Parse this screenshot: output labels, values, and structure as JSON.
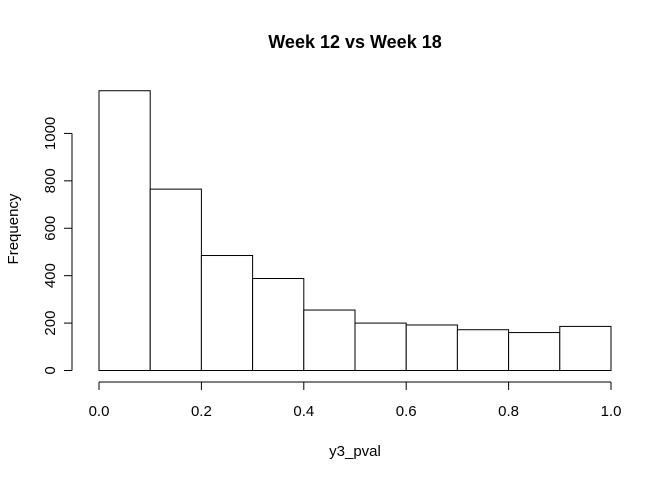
{
  "chart_data": {
    "type": "bar",
    "title": "Week 12 vs Week 18",
    "xlabel": "y3_pval",
    "ylabel": "Frequency",
    "bins": [
      {
        "x_start": 0.0,
        "x_end": 0.1,
        "value": 1180
      },
      {
        "x_start": 0.1,
        "x_end": 0.2,
        "value": 765
      },
      {
        "x_start": 0.2,
        "x_end": 0.3,
        "value": 485
      },
      {
        "x_start": 0.3,
        "x_end": 0.4,
        "value": 388
      },
      {
        "x_start": 0.4,
        "x_end": 0.5,
        "value": 255
      },
      {
        "x_start": 0.5,
        "x_end": 0.6,
        "value": 200
      },
      {
        "x_start": 0.6,
        "x_end": 0.7,
        "value": 192
      },
      {
        "x_start": 0.7,
        "x_end": 0.8,
        "value": 172
      },
      {
        "x_start": 0.8,
        "x_end": 0.9,
        "value": 160
      },
      {
        "x_start": 0.9,
        "x_end": 1.0,
        "value": 186
      }
    ],
    "xlim": [
      0.0,
      1.0
    ],
    "ylim": [
      0,
      1200
    ],
    "x_ticks": [
      0.0,
      0.2,
      0.4,
      0.6,
      0.8,
      1.0
    ],
    "x_tick_labels": [
      "0.0",
      "0.2",
      "0.4",
      "0.6",
      "0.8",
      "1.0"
    ],
    "y_ticks": [
      0,
      200,
      400,
      600,
      800,
      1000
    ],
    "y_tick_labels": [
      "0",
      "200",
      "400",
      "600",
      "800",
      "1000"
    ],
    "grid": false,
    "colors": {
      "bar_fill": "#ffffff",
      "bar_stroke": "#000000"
    }
  }
}
